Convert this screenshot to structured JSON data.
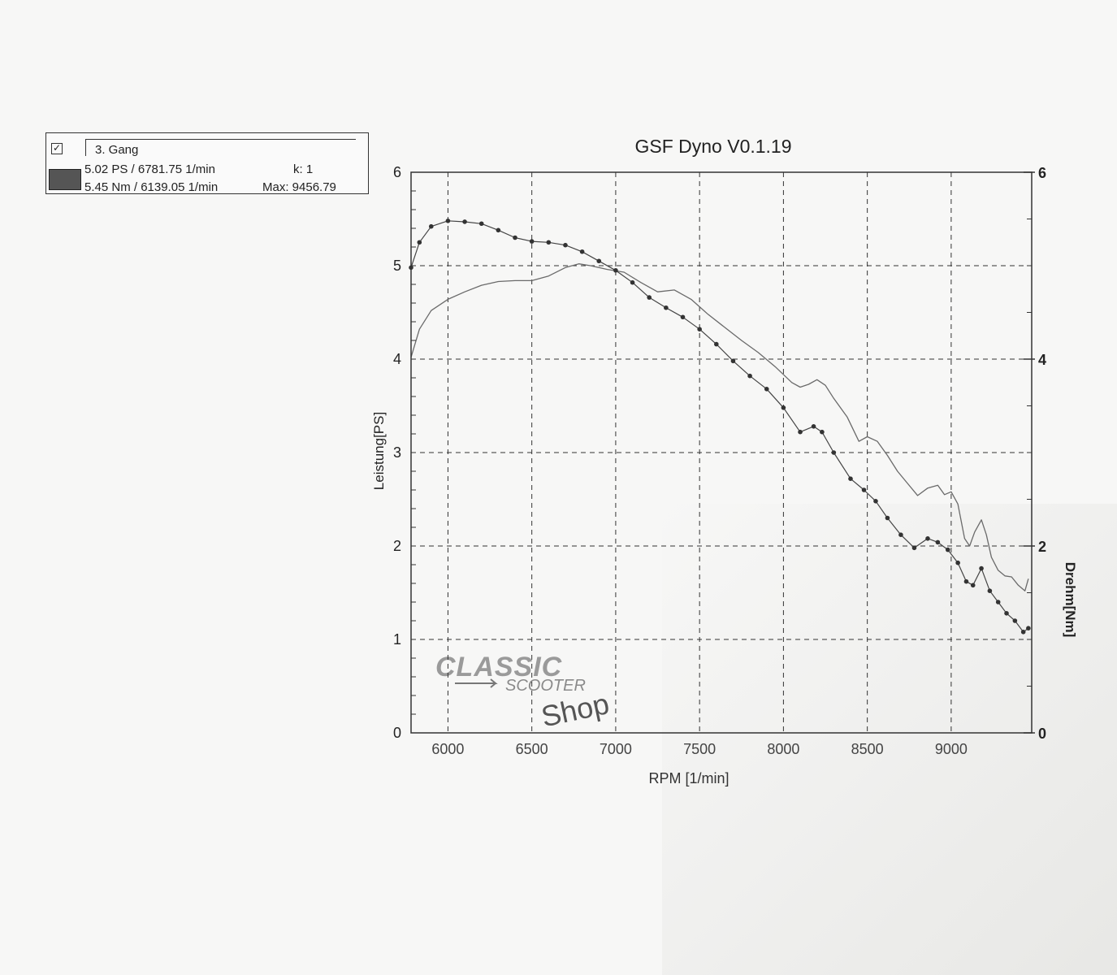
{
  "legend": {
    "checkbox": "✓",
    "title": "3. Gang",
    "line1": "5.02 PS / 6781.75 1/min",
    "k_label": "k: 1",
    "line2": "5.45 Nm / 6139.05 1/min",
    "max_label": "Max: 9456.79"
  },
  "logo": {
    "line1": "CLASSIC",
    "line2": "SCOOTER",
    "line3": "Shop"
  },
  "colors": {
    "grid": "#333333",
    "power": "#6a6a6a",
    "torque": "#444444",
    "text": "#222222"
  },
  "chart_data": {
    "type": "line",
    "title": "GSF Dyno V0.1.19",
    "xlabel": "RPM [1/min]",
    "ylabel": "Leistung[PS]",
    "y2label": "Drehm[Nm]",
    "xlim": [
      5780,
      9480
    ],
    "ylim": [
      0,
      6
    ],
    "y2lim": [
      0,
      6
    ],
    "xticks": [
      6000,
      6500,
      7000,
      7500,
      8000,
      8500,
      9000
    ],
    "yticks": [
      0,
      1,
      2,
      3,
      4,
      5,
      6
    ],
    "y2ticks": [
      0,
      2,
      4,
      6
    ],
    "grid": true,
    "series": [
      {
        "name": "Leistung",
        "axis": "left",
        "x": [
          5780,
          5830,
          5900,
          6000,
          6100,
          6200,
          6300,
          6400,
          6500,
          6600,
          6700,
          6780,
          6850,
          6950,
          7050,
          7150,
          7250,
          7350,
          7450,
          7550,
          7650,
          7750,
          7850,
          7950,
          8050,
          8100,
          8150,
          8200,
          8250,
          8300,
          8380,
          8450,
          8500,
          8560,
          8620,
          8680,
          8740,
          8800,
          8860,
          8920,
          8960,
          9000,
          9040,
          9080,
          9110,
          9140,
          9180,
          9210,
          9240,
          9280,
          9320,
          9360,
          9400,
          9440,
          9460
        ],
        "values": [
          4.02,
          4.32,
          4.52,
          4.64,
          4.72,
          4.79,
          4.83,
          4.84,
          4.84,
          4.89,
          4.98,
          5.02,
          5.0,
          4.96,
          4.93,
          4.82,
          4.72,
          4.74,
          4.64,
          4.48,
          4.34,
          4.2,
          4.07,
          3.92,
          3.75,
          3.7,
          3.73,
          3.78,
          3.72,
          3.58,
          3.38,
          3.12,
          3.17,
          3.12,
          2.97,
          2.8,
          2.67,
          2.54,
          2.62,
          2.65,
          2.55,
          2.58,
          2.45,
          2.08,
          2.0,
          2.15,
          2.28,
          2.12,
          1.88,
          1.74,
          1.68,
          1.67,
          1.58,
          1.52,
          1.65
        ]
      },
      {
        "name": "Drehm",
        "axis": "right",
        "x": [
          5780,
          5830,
          5900,
          6000,
          6100,
          6200,
          6300,
          6400,
          6500,
          6600,
          6700,
          6800,
          6900,
          7000,
          7100,
          7200,
          7300,
          7400,
          7500,
          7600,
          7700,
          7800,
          7900,
          8000,
          8100,
          8180,
          8230,
          8300,
          8400,
          8480,
          8550,
          8620,
          8700,
          8780,
          8860,
          8920,
          8980,
          9040,
          9090,
          9130,
          9180,
          9230,
          9280,
          9330,
          9380,
          9430,
          9460
        ],
        "values": [
          4.98,
          5.25,
          5.42,
          5.48,
          5.47,
          5.45,
          5.38,
          5.3,
          5.26,
          5.25,
          5.22,
          5.15,
          5.05,
          4.95,
          4.82,
          4.66,
          4.55,
          4.45,
          4.32,
          4.16,
          3.98,
          3.82,
          3.68,
          3.48,
          3.22,
          3.28,
          3.22,
          3.0,
          2.72,
          2.6,
          2.48,
          2.3,
          2.12,
          1.98,
          2.08,
          2.04,
          1.96,
          1.82,
          1.62,
          1.58,
          1.76,
          1.52,
          1.4,
          1.28,
          1.2,
          1.08,
          1.12
        ]
      }
    ]
  }
}
